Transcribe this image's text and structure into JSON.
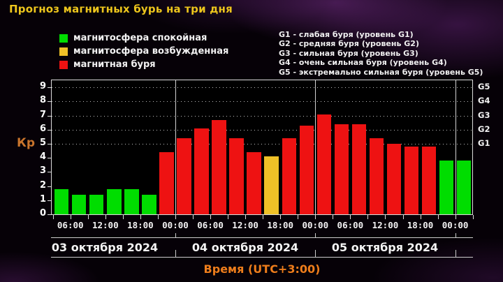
{
  "title": "Прогноз магнитных бурь на три дня",
  "colors": {
    "quiet": "#00dd00",
    "excited": "#efc127",
    "storm": "#ee1212",
    "title": "#ecc51c",
    "caption": "#ee7d1b",
    "kp_label": "#c8742c",
    "grid_text": "#f2f2f2"
  },
  "legend": {
    "items": [
      {
        "label": "магнитосфера спокойная",
        "state": "quiet"
      },
      {
        "label": "магнитосфера возбужденная",
        "state": "excited"
      },
      {
        "label": "магнитная буря",
        "state": "storm"
      }
    ]
  },
  "g_legend": {
    "lines": [
      "G1 - слабая буря (уровень G1)",
      "G2 - средняя буря (уровень G2)",
      "G3 - сильная буря (уровень G3)",
      "G4 - очень сильная буря (уровень G4)",
      "G5 - экстремально сильная буря (уровень G5)"
    ]
  },
  "chart_data": {
    "type": "bar",
    "ylabel": "Кр",
    "xlabel": "Время (UTC+3:00)",
    "ylim": [
      0,
      9.5
    ],
    "yticks": [
      0,
      1,
      2,
      3,
      4,
      5,
      6,
      7,
      8,
      9
    ],
    "grid_dot_levels": [
      5,
      6,
      7,
      8,
      9
    ],
    "g_scale": [
      {
        "label": "G1",
        "kp": 5
      },
      {
        "label": "G2",
        "kp": 6
      },
      {
        "label": "G3",
        "kp": 7
      },
      {
        "label": "G4",
        "kp": 8
      },
      {
        "label": "G5",
        "kp": 9
      }
    ],
    "time_tick_labels": [
      "06:00",
      "12:00",
      "18:00",
      "00:00",
      "06:00",
      "12:00",
      "18:00",
      "00:00",
      "06:00",
      "12:00",
      "18:00",
      "00:00"
    ],
    "days": [
      {
        "label": "03 октября 2024"
      },
      {
        "label": "04 октября 2024"
      },
      {
        "label": "05 октября 2024"
      }
    ],
    "bars": [
      {
        "time": "03:00",
        "kp": 1.8,
        "state": "quiet"
      },
      {
        "time": "06:00",
        "kp": 1.4,
        "state": "quiet"
      },
      {
        "time": "09:00",
        "kp": 1.4,
        "state": "quiet"
      },
      {
        "time": "12:00",
        "kp": 1.8,
        "state": "quiet"
      },
      {
        "time": "15:00",
        "kp": 1.8,
        "state": "quiet"
      },
      {
        "time": "18:00",
        "kp": 1.4,
        "state": "quiet"
      },
      {
        "time": "21:00",
        "kp": 4.4,
        "state": "storm"
      },
      {
        "time": "00:00",
        "kp": 5.4,
        "state": "storm"
      },
      {
        "time": "03:00",
        "kp": 6.1,
        "state": "storm"
      },
      {
        "time": "06:00",
        "kp": 6.7,
        "state": "storm"
      },
      {
        "time": "09:00",
        "kp": 5.4,
        "state": "storm"
      },
      {
        "time": "12:00",
        "kp": 4.4,
        "state": "storm"
      },
      {
        "time": "15:00",
        "kp": 4.1,
        "state": "excited"
      },
      {
        "time": "18:00",
        "kp": 5.4,
        "state": "storm"
      },
      {
        "time": "21:00",
        "kp": 6.3,
        "state": "storm"
      },
      {
        "time": "00:00",
        "kp": 7.1,
        "state": "storm"
      },
      {
        "time": "03:00",
        "kp": 6.4,
        "state": "storm"
      },
      {
        "time": "06:00",
        "kp": 6.4,
        "state": "storm"
      },
      {
        "time": "09:00",
        "kp": 5.4,
        "state": "storm"
      },
      {
        "time": "12:00",
        "kp": 5.0,
        "state": "storm"
      },
      {
        "time": "15:00",
        "kp": 4.8,
        "state": "storm"
      },
      {
        "time": "18:00",
        "kp": 4.8,
        "state": "storm"
      },
      {
        "time": "21:00",
        "kp": 3.8,
        "state": "quiet"
      },
      {
        "time": "00:00",
        "kp": 3.8,
        "state": "quiet"
      }
    ]
  }
}
